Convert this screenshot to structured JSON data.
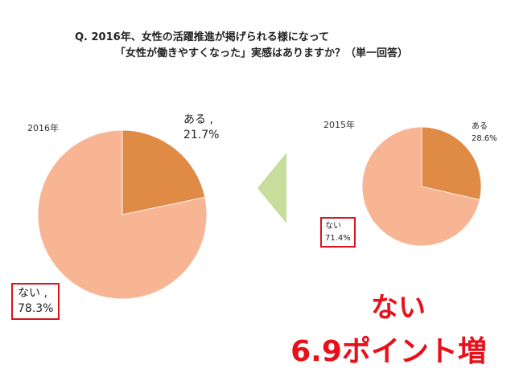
{
  "title": {
    "line1": "Q. 2016年、女性の活躍推進が掲げられる様になって",
    "line2": "「女性が働きやすくなった」実感はありますか？（単一回答）"
  },
  "headline": {
    "line1": "ない",
    "line2": "6.9ポイント増"
  },
  "colors": {
    "aru": "#df8a45",
    "nai": "#f8b594",
    "arrow": "#c6dd9c",
    "highlight": "#e8101a"
  },
  "chart_data": [
    {
      "type": "pie",
      "year_label": "2016年",
      "categories": [
        "ある",
        "ない"
      ],
      "values": [
        21.7,
        78.3
      ],
      "labels": [
        {
          "name": "ある ,",
          "value": "21.7%"
        },
        {
          "name": "ない ,",
          "value": "78.3%"
        }
      ]
    },
    {
      "type": "pie",
      "year_label": "2015年",
      "categories": [
        "ある",
        "ない"
      ],
      "values": [
        28.6,
        71.4
      ],
      "labels": [
        {
          "name": "ある",
          "value": "28.6%"
        },
        {
          "name": "ない",
          "value": "71.4%"
        }
      ]
    }
  ]
}
